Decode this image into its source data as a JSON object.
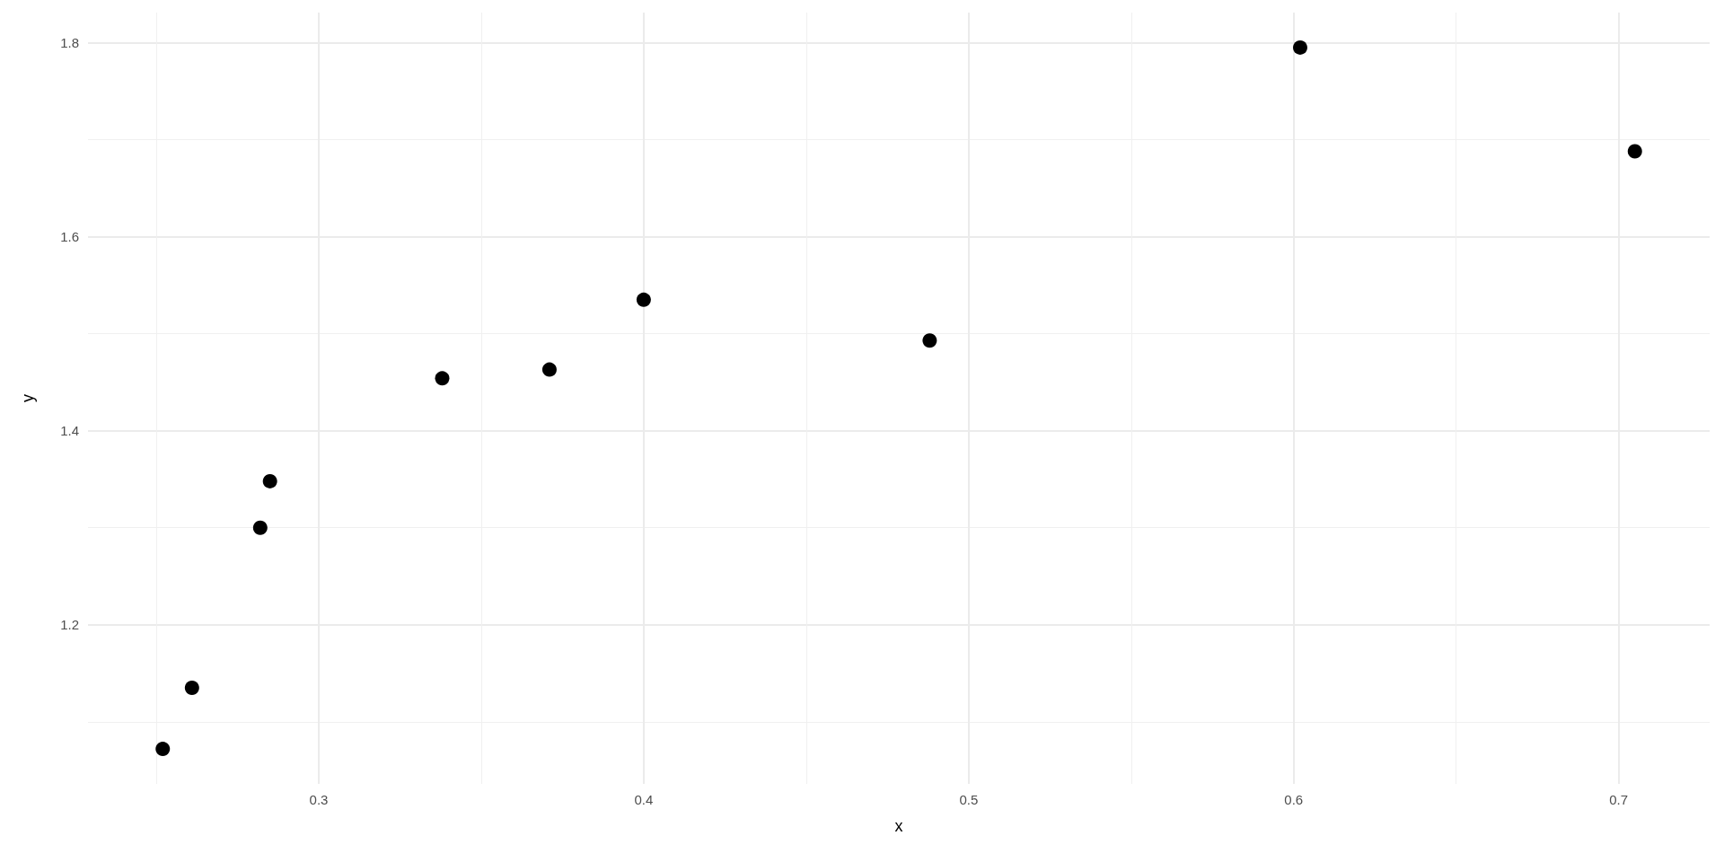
{
  "chart_data": {
    "type": "scatter",
    "xlabel": "x",
    "ylabel": "y",
    "x": [
      0.252,
      0.261,
      0.282,
      0.285,
      0.338,
      0.371,
      0.4,
      0.488,
      0.602,
      0.705
    ],
    "values": [
      1.072,
      1.135,
      1.3,
      1.348,
      1.454,
      1.463,
      1.535,
      1.493,
      1.795,
      1.688
    ],
    "color": "#000000",
    "marker": "circle",
    "xlim": [
      0.229,
      0.728
    ],
    "xticks": [
      {
        "value": 0.25,
        "label": null
      },
      0.3,
      {
        "value": 0.35,
        "label": null
      },
      0.4,
      {
        "value": 0.45,
        "label": null
      },
      0.5,
      {
        "value": 0.55,
        "label": null
      },
      0.6,
      {
        "value": 0.65,
        "label": null
      },
      0.7
    ],
    "ylim": [
      1.036,
      1.831
    ],
    "yticks": [
      {
        "value": 1.1,
        "label": null
      },
      1.2,
      {
        "value": 1.3,
        "label": null
      },
      1.4,
      {
        "value": 1.5,
        "label": null
      },
      1.6,
      {
        "value": 1.7,
        "label": null
      },
      1.8
    ],
    "grid": true
  }
}
